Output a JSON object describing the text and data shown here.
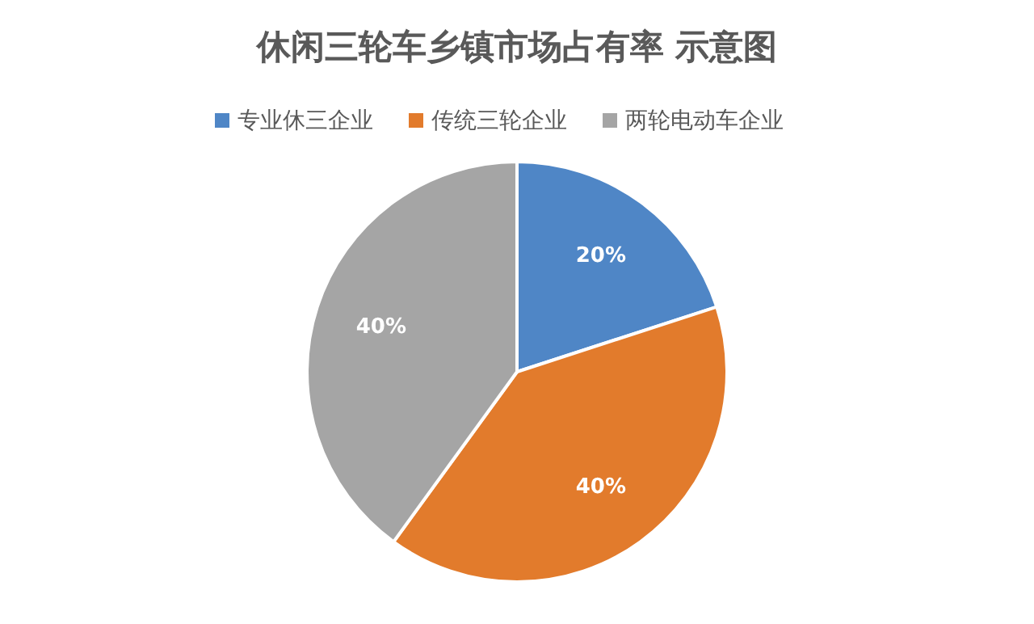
{
  "chart_data": {
    "type": "pie",
    "title": "休闲三轮车乡镇市场占有率 示意图",
    "categories": [
      "专业休三企业",
      "传统三轮企业",
      "两轮电动车企业"
    ],
    "values": [
      20,
      40,
      40
    ],
    "colors": [
      "#4f86c6",
      "#e27b2c",
      "#a5a5a5"
    ],
    "value_labels": [
      "20%",
      "40%",
      "40%"
    ],
    "legend": "top"
  }
}
